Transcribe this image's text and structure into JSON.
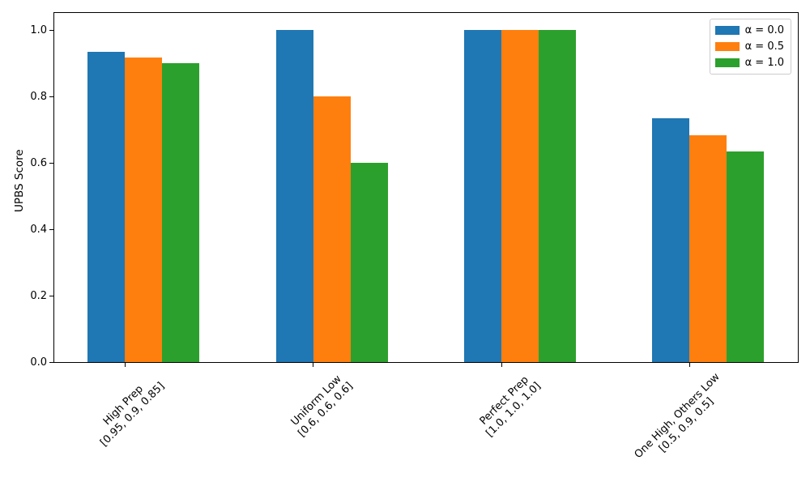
{
  "chart_data": {
    "type": "bar",
    "title": "",
    "xlabel": "",
    "ylabel": "UPBS Score",
    "categories": [
      "High Prep",
      "Uniform Low",
      "Perfect Prep",
      "One High, Others Low"
    ],
    "category_sublabels": [
      "[0.95, 0.9, 0.85]",
      "[0.6, 0.6, 0.6]",
      "[1.0, 1.0, 1.0]",
      "[0.5, 0.9, 0.5]"
    ],
    "series": [
      {
        "name": "α = 0.0",
        "color": "#1f77b4",
        "values": [
          0.933,
          1.0,
          1.0,
          0.733
        ]
      },
      {
        "name": "α = 0.5",
        "color": "#ff7f0e",
        "values": [
          0.917,
          0.8,
          1.0,
          0.683
        ]
      },
      {
        "name": "α = 1.0",
        "color": "#2ca02c",
        "values": [
          0.9,
          0.6,
          1.0,
          0.633
        ]
      }
    ],
    "yticks": [
      0.0,
      0.2,
      0.4,
      0.6,
      0.8,
      1.0
    ],
    "ylim": [
      0.0,
      1.054
    ],
    "grid": false,
    "legend_position": "upper right",
    "axis_color": "#000000",
    "background_color": "#ffffff"
  }
}
